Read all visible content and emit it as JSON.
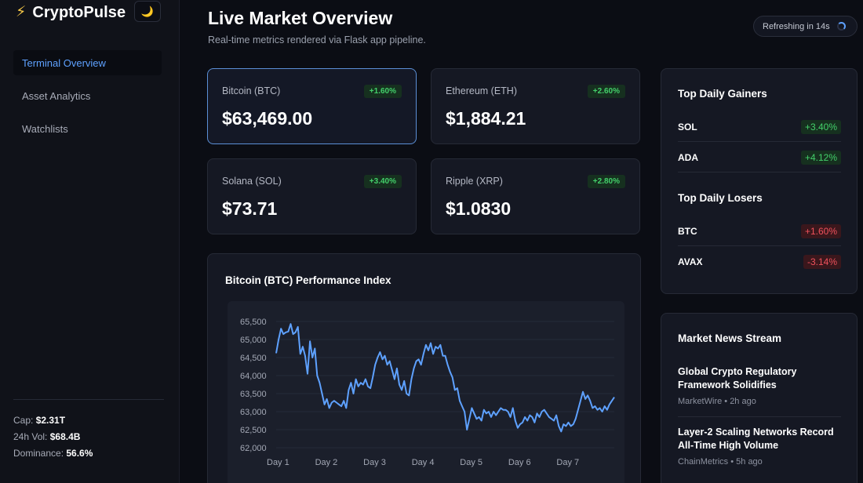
{
  "brand": {
    "icon": "lightning-icon",
    "name": "CryptoPulse",
    "theme_toggle_icon": "moon-icon"
  },
  "nav": [
    {
      "label": "Terminal Overview",
      "active": true
    },
    {
      "label": "Asset Analytics",
      "active": false
    },
    {
      "label": "Watchlists",
      "active": false
    }
  ],
  "sidebar_stats": {
    "cap_label": "Cap:",
    "cap_value": "$2.31T",
    "vol_label": "24h Vol:",
    "vol_value": "$68.4B",
    "dom_label": "Dominance:",
    "dom_value": "56.6%"
  },
  "header": {
    "title": "Live Market Overview",
    "subtitle": "Real-time metrics rendered via Flask app pipeline.",
    "refresh_label": "Refreshing in 14s"
  },
  "cards": [
    {
      "name": "Bitcoin (BTC)",
      "change": "+1.60%",
      "price": "$63,469.00",
      "selected": true
    },
    {
      "name": "Ethereum (ETH)",
      "change": "+2.60%",
      "price": "$1,884.21",
      "selected": false
    },
    {
      "name": "Solana (SOL)",
      "change": "+3.40%",
      "price": "$73.71",
      "selected": false
    },
    {
      "name": "Ripple (XRP)",
      "change": "+2.80%",
      "price": "$1.0830",
      "selected": false
    }
  ],
  "chart_panel": {
    "title": "Bitcoin (BTC) Performance Index"
  },
  "chart_data": {
    "type": "line",
    "title": "Bitcoin (BTC) Performance Index",
    "xlabel": "",
    "ylabel": "",
    "x_ticks": [
      "Day 1",
      "Day 2",
      "Day 3",
      "Day 4",
      "Day 5",
      "Day 6",
      "Day 7"
    ],
    "y_ticks": [
      "65,500",
      "65,000",
      "64,500",
      "64,000",
      "63,500",
      "63,000",
      "62,500",
      "62,000"
    ],
    "ylim": [
      62000,
      65500
    ],
    "xlim": [
      1,
      8
    ],
    "grid": true,
    "color": "#5ea1ff",
    "series": [
      {
        "x": [
          1.0,
          1.05,
          1.1,
          1.15,
          1.2,
          1.25,
          1.3,
          1.35,
          1.4,
          1.45,
          1.5,
          1.55,
          1.6,
          1.65,
          1.7,
          1.75,
          1.8,
          1.85,
          1.9,
          1.95,
          2.0,
          2.05,
          2.1,
          2.15,
          2.2,
          2.25,
          2.3,
          2.35,
          2.4,
          2.45,
          2.5,
          2.55,
          2.6,
          2.65,
          2.7,
          2.75,
          2.8,
          2.85,
          2.9,
          2.95,
          3.0,
          3.05,
          3.1,
          3.15,
          3.2,
          3.25,
          3.3,
          3.35,
          3.4,
          3.45,
          3.5,
          3.55,
          3.6,
          3.65,
          3.7,
          3.75,
          3.8,
          3.85,
          3.9,
          3.95,
          4.0,
          4.05,
          4.1,
          4.15,
          4.2,
          4.25,
          4.3,
          4.35,
          4.4,
          4.45,
          4.5,
          4.55,
          4.6,
          4.65,
          4.7,
          4.75,
          4.8,
          4.85,
          4.9,
          4.95,
          5.0,
          5.05,
          5.1,
          5.15,
          5.2,
          5.25,
          5.3,
          5.35,
          5.4,
          5.45,
          5.5,
          5.55,
          5.6,
          5.65,
          5.7,
          5.75,
          5.8,
          5.85,
          5.9,
          5.95,
          6.0,
          6.05,
          6.1,
          6.15,
          6.2,
          6.25,
          6.3,
          6.35,
          6.4,
          6.45,
          6.5,
          6.55,
          6.6,
          6.65,
          6.7,
          6.75,
          6.8,
          6.85,
          6.9,
          6.95,
          7.0,
          7.05,
          7.1,
          7.15,
          7.2,
          7.25,
          7.3,
          7.35,
          7.4,
          7.45,
          7.5,
          7.55,
          7.6,
          7.65,
          7.7,
          7.75,
          7.8,
          7.85,
          7.9,
          7.95,
          8.0
        ],
        "values": [
          64620,
          65000,
          65300,
          65150,
          65200,
          65220,
          65430,
          65150,
          65200,
          65350,
          64600,
          64800,
          64550,
          64050,
          64950,
          64500,
          64750,
          64000,
          63800,
          63500,
          63200,
          63350,
          63100,
          63250,
          63300,
          63250,
          63200,
          63150,
          63300,
          63100,
          63600,
          63800,
          63500,
          63900,
          63700,
          63800,
          63750,
          63900,
          63700,
          63650,
          63950,
          64300,
          64500,
          64650,
          64450,
          64550,
          64300,
          64400,
          64150,
          63900,
          64200,
          63750,
          63600,
          63850,
          63500,
          63450,
          63900,
          64200,
          64400,
          64450,
          64300,
          64600,
          64850,
          64700,
          64900,
          64600,
          64800,
          64750,
          64850,
          64550,
          64550,
          64300,
          64100,
          63950,
          63600,
          63650,
          63300,
          63150,
          63000,
          62500,
          62800,
          63100,
          62950,
          62800,
          62850,
          62750,
          63050,
          62950,
          63000,
          62850,
          63000,
          62900,
          63000,
          63100,
          63050,
          63050,
          63000,
          62850,
          63100,
          62750,
          62550,
          62650,
          62700,
          62850,
          62750,
          62900,
          62850,
          62700,
          62950,
          62850,
          63000,
          63050,
          62950,
          62850,
          62800,
          62750,
          62900,
          62600,
          62450,
          62650,
          62600,
          62700,
          62600,
          62650,
          62800,
          63050,
          63300,
          63550,
          63350,
          63450,
          63300,
          63100,
          63150,
          63050,
          63100,
          63000,
          63150,
          63050,
          63200,
          63300,
          63400
        ]
      }
    ]
  },
  "movers": {
    "gainers_title": "Top Daily Gainers",
    "gainers": [
      {
        "symbol": "SOL",
        "change": "+3.40%"
      },
      {
        "symbol": "ADA",
        "change": "+4.12%"
      }
    ],
    "losers_title": "Top Daily Losers",
    "losers": [
      {
        "symbol": "BTC",
        "change": "+1.60%"
      },
      {
        "symbol": "AVAX",
        "change": "-3.14%"
      }
    ]
  },
  "news": {
    "title": "Market News Stream",
    "items": [
      {
        "headline": "Global Crypto Regulatory Framework Solidifies",
        "meta": "MarketWire • 2h ago"
      },
      {
        "headline": "Layer-2 Scaling Networks Record All-Time High Volume",
        "meta": "ChainMetrics • 5h ago"
      }
    ]
  }
}
